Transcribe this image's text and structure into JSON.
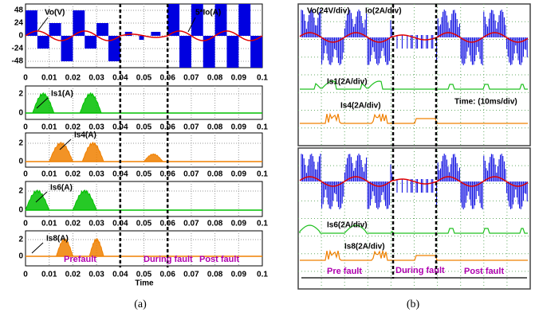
{
  "panel_a": {
    "caption": "(a)",
    "xlabel": "Time",
    "xticks": [
      "0",
      "0.01",
      "0.02",
      "0.03",
      "0.04",
      "0.05",
      "0.06",
      "0.07",
      "0.08",
      "0.09",
      "0.1"
    ],
    "plots": [
      {
        "yticks": [
          "48",
          "24",
          "0",
          "-24",
          "-48"
        ],
        "labels": [
          "Vo(V)",
          "5*Io(A)"
        ]
      },
      {
        "yticks": [
          "2",
          "0"
        ],
        "labels": [
          "Is1(A)"
        ]
      },
      {
        "yticks": [
          "2",
          "0"
        ],
        "labels": [
          "Is4(A)"
        ]
      },
      {
        "yticks": [
          "2",
          "0"
        ],
        "labels": [
          "Is6(A)"
        ]
      },
      {
        "yticks": [
          "2",
          "0"
        ],
        "labels": [
          "Is8(A)"
        ]
      }
    ],
    "annotations": [
      "Prefault",
      "During fault",
      "Post fault"
    ]
  },
  "panel_b": {
    "caption": "(b)",
    "top_labels": [
      "Vo(24V/div)",
      "Io(2A/div)",
      "Is1(2A/div)",
      "Is4(2A/div)",
      "Time: (10ms/div)"
    ],
    "bottom_labels": [
      "Is6(2A/div)",
      "Is8(2A/div)"
    ],
    "phases": [
      "Pre fault",
      "During  fault",
      "Post fault"
    ]
  }
}
